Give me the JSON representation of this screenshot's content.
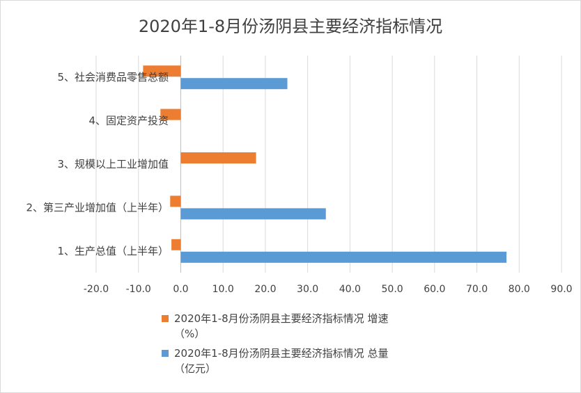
{
  "chart_data": {
    "type": "bar",
    "orientation": "horizontal",
    "title": "2020年1-8月份汤阴县主要经济指标情况",
    "categories": [
      "1、生产总值（上半年）",
      "2、第三产业增加值（上半年）",
      "3、规模以上工业增加值",
      "4、固定资产投资",
      "5、社会消费品零售总额"
    ],
    "series": [
      {
        "name_lines": [
          "2020年1-8月份汤阴县主要经济指标情况 增速",
          "（%）"
        ],
        "color": "#ED7D31",
        "values": [
          -2.2,
          -2.5,
          17.8,
          -4.8,
          -8.9
        ]
      },
      {
        "name_lines": [
          "2020年1-8月份汤阴县主要经济指标情况 总量",
          "（亿元）"
        ],
        "color": "#5B9BD5",
        "values": [
          77.0,
          34.3,
          null,
          null,
          25.2
        ]
      }
    ],
    "xlim": [
      -20,
      90
    ],
    "xticks": [
      "-20.0",
      "-10.0",
      "0.0",
      "10.0",
      "20.0",
      "30.0",
      "40.0",
      "50.0",
      "60.0",
      "70.0",
      "80.0",
      "90.0"
    ],
    "grid": true,
    "legend_position": "bottom"
  }
}
